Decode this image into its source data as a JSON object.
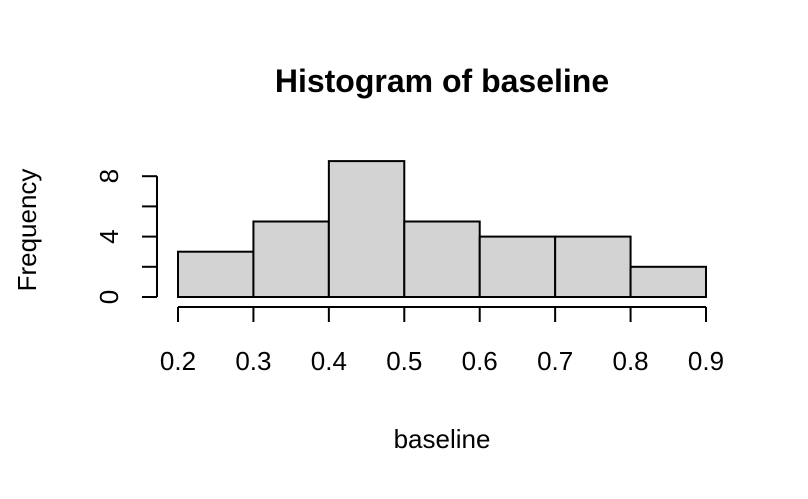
{
  "colors": {
    "bar_fill": "#d3d3d3",
    "bar_stroke": "#000000",
    "background": "#ffffff"
  },
  "chart_data": {
    "type": "bar",
    "title": "Histogram of baseline",
    "xlabel": "baseline",
    "ylabel": "Frequency",
    "bins": [
      {
        "start": 0.2,
        "end": 0.3,
        "count": 3
      },
      {
        "start": 0.3,
        "end": 0.4,
        "count": 5
      },
      {
        "start": 0.4,
        "end": 0.5,
        "count": 9
      },
      {
        "start": 0.5,
        "end": 0.6,
        "count": 5
      },
      {
        "start": 0.6,
        "end": 0.7,
        "count": 4
      },
      {
        "start": 0.7,
        "end": 0.8,
        "count": 4
      },
      {
        "start": 0.8,
        "end": 0.9,
        "count": 2
      }
    ],
    "x_ticks": [
      "0.2",
      "0.3",
      "0.4",
      "0.5",
      "0.6",
      "0.7",
      "0.8",
      "0.9"
    ],
    "y_ticks": [
      0,
      2,
      4,
      6,
      8
    ],
    "y_tick_labels": [
      "0",
      "",
      "4",
      "",
      "8"
    ],
    "xlim": [
      0.2,
      0.9
    ],
    "ylim": [
      0,
      9
    ],
    "grid": false,
    "legend": "none"
  }
}
